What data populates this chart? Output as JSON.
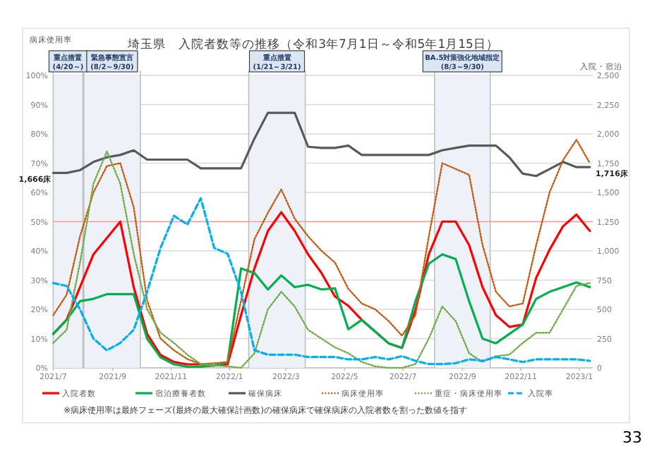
{
  "chart_data": {
    "type": "line",
    "title": "埼玉県　入院者数等の推移（令和3年7月1日～令和5年1月15日）",
    "ylabel": "病床使用率",
    "y2label": "入院・宿泊",
    "x": [
      "2021-07-01",
      "2021-07-15",
      "2021-07-29",
      "2021-08-12",
      "2021-08-26",
      "2021-09-09",
      "2021-09-23",
      "2021-10-07",
      "2021-10-21",
      "2021-11-04",
      "2021-11-18",
      "2021-12-02",
      "2021-12-16",
      "2021-12-30",
      "2022-01-13",
      "2022-01-27",
      "2022-02-10",
      "2022-02-24",
      "2022-03-10",
      "2022-03-24",
      "2022-04-07",
      "2022-04-21",
      "2022-05-05",
      "2022-05-19",
      "2022-06-02",
      "2022-06-16",
      "2022-06-30",
      "2022-07-14",
      "2022-07-28",
      "2022-08-11",
      "2022-08-25",
      "2022-09-08",
      "2022-09-22",
      "2022-10-06",
      "2022-10-20",
      "2022-11-03",
      "2022-11-17",
      "2022-12-01",
      "2022-12-15",
      "2022-12-29",
      "2023-01-12"
    ],
    "series": [
      {
        "name": "入院者数",
        "color": "#ff0000",
        "axis": "y2",
        "line_style": "solid",
        "values": [
          290,
          410,
          690,
          970,
          1110,
          1250,
          690,
          290,
          110,
          50,
          30,
          30,
          20,
          30,
          450,
          850,
          1170,
          1330,
          1170,
          970,
          810,
          610,
          530,
          410,
          310,
          210,
          170,
          490,
          970,
          1250,
          1250,
          1050,
          690,
          450,
          350,
          370,
          770,
          1010,
          1210,
          1310,
          1170
        ]
      },
      {
        "name": "宿泊療養者数",
        "color": "#00b050",
        "axis": "y2",
        "line_style": "solid",
        "values": [
          290,
          410,
          570,
          590,
          630,
          630,
          630,
          250,
          90,
          30,
          10,
          10,
          20,
          50,
          850,
          810,
          670,
          790,
          690,
          710,
          670,
          680,
          330,
          410,
          310,
          210,
          170,
          570,
          890,
          970,
          930,
          570,
          250,
          210,
          290,
          370,
          590,
          650,
          690,
          730,
          690
        ]
      },
      {
        "name": "確保病床",
        "color": "#595959",
        "axis": "y2",
        "line_style": "solid",
        "values": [
          1666,
          1666,
          1690,
          1760,
          1800,
          1820,
          1860,
          1780,
          1780,
          1780,
          1780,
          1706,
          1706,
          1706,
          1706,
          1960,
          2180,
          2180,
          2180,
          1890,
          1880,
          1880,
          1900,
          1820,
          1820,
          1820,
          1820,
          1820,
          1820,
          1860,
          1880,
          1900,
          1900,
          1900,
          1800,
          1660,
          1640,
          1700,
          1760,
          1716,
          1716
        ]
      },
      {
        "name": "病床使用率",
        "color": "#c55a11",
        "axis": "y",
        "line_style": "dotted",
        "values": [
          18,
          25,
          45,
          60,
          69,
          70,
          55,
          23,
          10,
          6,
          3,
          1.3,
          1.6,
          2,
          23,
          44,
          53,
          61,
          51,
          45,
          40,
          36,
          27,
          22,
          20,
          16,
          11,
          18,
          45,
          70,
          68,
          66,
          42,
          26,
          21,
          22,
          42,
          60,
          71,
          78,
          70
        ]
      },
      {
        "name": "重症・病床使用率",
        "color": "#70ad47",
        "axis": "y",
        "line_style": "dotted",
        "values": [
          8.5,
          13,
          36,
          63,
          74,
          63,
          39,
          20,
          12,
          8.5,
          4.5,
          1.3,
          0.8,
          0.5,
          0,
          5,
          20,
          26,
          21,
          13,
          10,
          7,
          5,
          2,
          0.5,
          0,
          0,
          1.3,
          10,
          21,
          16,
          5,
          2,
          4,
          4.5,
          8.5,
          12,
          12,
          20,
          28,
          29
        ]
      },
      {
        "name": "入院率",
        "color": "#00b0f0",
        "axis": "y",
        "line_style": "dashed",
        "values": [
          29,
          28,
          20,
          10,
          6,
          8.5,
          13,
          26,
          41,
          52,
          49,
          58,
          41,
          39,
          26,
          6,
          4.5,
          4.5,
          4.5,
          3.7,
          3.7,
          3.7,
          2.9,
          2.9,
          3.7,
          2.9,
          4,
          2.4,
          1.3,
          1.3,
          1.6,
          2.9,
          2.4,
          3.7,
          2.9,
          2,
          2.9,
          2.9,
          2.9,
          2.9,
          2.4
        ]
      }
    ],
    "xlim": [
      "2021-07-01",
      "2023-01-15"
    ],
    "xticks": [
      {
        "value": "2021-07-01",
        "label": "2021/7"
      },
      {
        "value": "2021-09-01",
        "label": "2021/9"
      },
      {
        "value": "2021-11-01",
        "label": "2021/11"
      },
      {
        "value": "2022-01-01",
        "label": "2022/1"
      },
      {
        "value": "2022-03-01",
        "label": "2022/3"
      },
      {
        "value": "2022-05-01",
        "label": "2022/5"
      },
      {
        "value": "2022-07-01",
        "label": "2022/7"
      },
      {
        "value": "2022-09-01",
        "label": "2022/9"
      },
      {
        "value": "2022-11-01",
        "label": "2022/11"
      },
      {
        "value": "2023-01-01",
        "label": "2023/1"
      }
    ],
    "ylim": [
      0,
      100
    ],
    "yticks": [
      {
        "value": 0,
        "label": "0%"
      },
      {
        "value": 10,
        "label": "10%"
      },
      {
        "value": 20,
        "label": "20%"
      },
      {
        "value": 30,
        "label": "30%"
      },
      {
        "value": 40,
        "label": "40%"
      },
      {
        "value": 50,
        "label": "50%"
      },
      {
        "value": 60,
        "label": "60%"
      },
      {
        "value": 70,
        "label": "70%"
      },
      {
        "value": 80,
        "label": "80%"
      },
      {
        "value": 90,
        "label": "90%"
      },
      {
        "value": 100,
        "label": "100%"
      }
    ],
    "y2lim": [
      0,
      2500
    ],
    "y2ticks": [
      0,
      250,
      500,
      750,
      {
        "value": 1000,
        "label": "1,000"
      },
      {
        "value": 1250,
        "label": "1,250"
      },
      {
        "value": 1500,
        "label": "1,500"
      },
      {
        "value": 1750,
        "label": "1,750"
      },
      {
        "value": 2000,
        "label": "2,000"
      },
      {
        "value": 2250,
        "label": "2,250"
      },
      {
        "value": 2500,
        "label": "2,500"
      }
    ],
    "grid": "y",
    "legend": "bottom",
    "ref_lines": [
      {
        "axis": "y",
        "value": 50,
        "color": "#ff9999"
      }
    ],
    "bands": [
      {
        "axis": "x",
        "from": "2021-07-01",
        "to": "2021-08-01",
        "label": "重点措置\n(4/20～)",
        "color": "#eef2f8"
      },
      {
        "axis": "x",
        "from": "2021-08-02",
        "to": "2021-09-30",
        "label": "緊急事態宣言\n(8/2～9/30)",
        "color": "#eef2f8"
      },
      {
        "axis": "x",
        "from": "2022-01-21",
        "to": "2022-03-21",
        "label": "重点措置\n(1/21～3/21)",
        "color": "#eef2f8"
      },
      {
        "axis": "x",
        "from": "2022-08-03",
        "to": "2022-09-30",
        "label": "BA.5対策強化地域指定\n(8/3～9/30)",
        "color": "#eef2f8"
      }
    ],
    "annotations": [
      "1,666床",
      "1,716床",
      "※病床使用率は最終フェーズ(最終の最大確保計画数)の確保病床で確保病床の入院者数を割った数値を指す",
      "33"
    ]
  }
}
